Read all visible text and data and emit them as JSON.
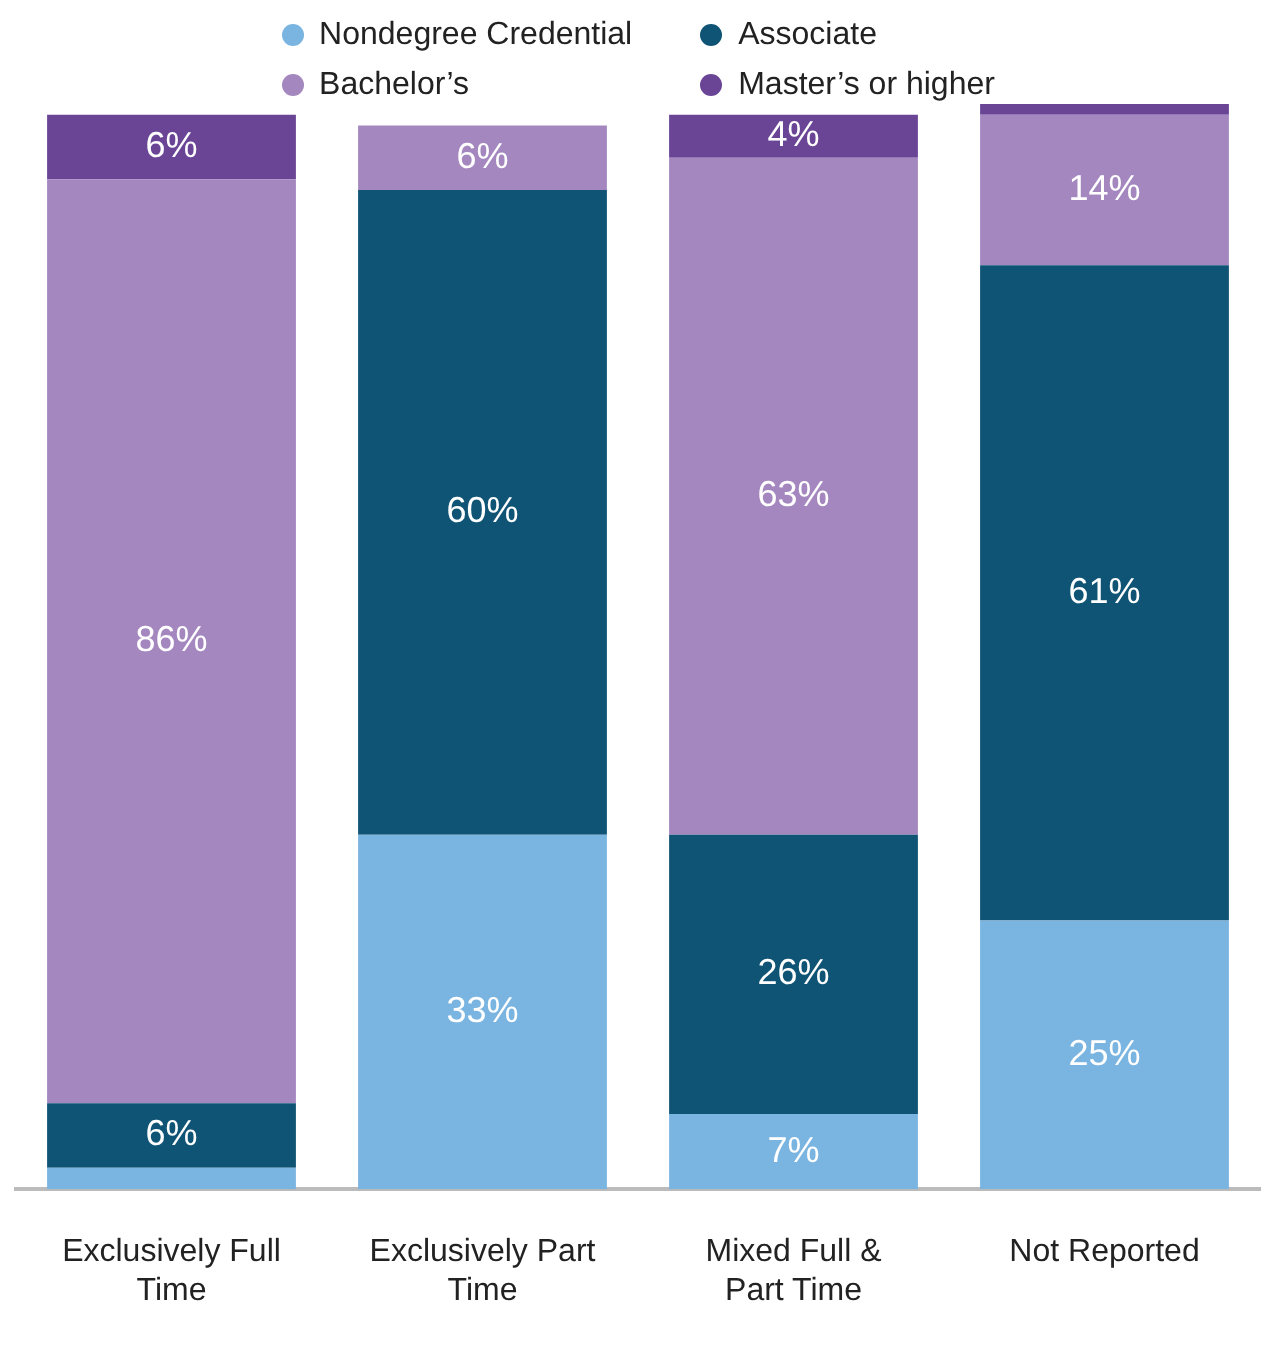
{
  "chart_data": {
    "type": "bar",
    "stacked": true,
    "categories": [
      "Exclusively Full Time",
      "Exclusively Part Time",
      "Mixed Full & Part Time",
      "Not Reported"
    ],
    "ylim": [
      0,
      101
    ],
    "tick_labels": "x",
    "legend": "top",
    "grid": false,
    "series": [
      {
        "name": "Nondegree Credential",
        "color": "#7ab4e0",
        "values": [
          2,
          33,
          7,
          25
        ],
        "value_labels": [
          null,
          "33%",
          "7%",
          "25%"
        ]
      },
      {
        "name": "Associate",
        "color": "#0f5475",
        "values": [
          6,
          60,
          26,
          61
        ],
        "value_labels": [
          "6%",
          "60%",
          "26%",
          "61%"
        ]
      },
      {
        "name": "Bachelor’s",
        "color": "#a487bf",
        "values": [
          86,
          6,
          63,
          14
        ],
        "value_labels": [
          "86%",
          "6%",
          "63%",
          "14%"
        ]
      },
      {
        "name": "Master’s or higher",
        "color": "#6a4596",
        "values": [
          6,
          0,
          4,
          1
        ],
        "value_labels": [
          "6%",
          null,
          "4%",
          null
        ]
      }
    ]
  }
}
